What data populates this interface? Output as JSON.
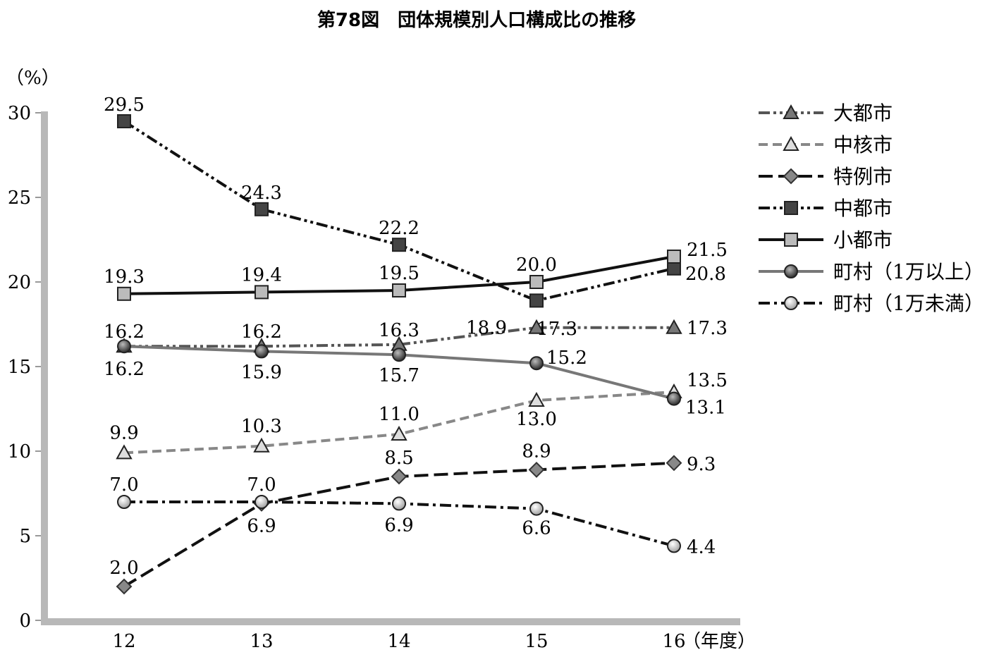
{
  "chart_data": {
    "type": "line",
    "title": "第78図　団体規模別人口構成比の推移",
    "ylabel": "（%）",
    "xlabel": "（年度）",
    "categories": [
      "12",
      "13",
      "14",
      "15",
      "16"
    ],
    "ylim": [
      0,
      30
    ],
    "yticks": [
      "0",
      "5",
      "10",
      "15",
      "20",
      "25",
      "30"
    ],
    "legend_position": "right",
    "series": [
      {
        "name": "大都市",
        "marker": "triangle",
        "dash": "dashdotdot",
        "color": "#555555",
        "marker_color": "#777777",
        "values": [
          16.2,
          16.2,
          16.3,
          17.3,
          17.3
        ],
        "labels": [
          "16.2",
          "16.2",
          "16.3",
          "17.3",
          "17.3"
        ]
      },
      {
        "name": "中核市",
        "marker": "triangle",
        "dash": "dashed",
        "color": "#888888",
        "marker_color": "#dddddd",
        "values": [
          9.9,
          10.3,
          11.0,
          13.0,
          13.5
        ],
        "labels": [
          "9.9",
          "10.3",
          "11.0",
          "13.0",
          "13.5"
        ]
      },
      {
        "name": "特例市",
        "marker": "diamond",
        "dash": "longdash",
        "color": "#111111",
        "marker_color": "#888888",
        "values": [
          2.0,
          6.9,
          8.5,
          8.9,
          9.3
        ],
        "labels": [
          "2.0",
          "6.9",
          "8.5",
          "8.9",
          "9.3"
        ]
      },
      {
        "name": "中都市",
        "marker": "square",
        "dash": "dashdotdot",
        "color": "#111111",
        "marker_color": "#444444",
        "values": [
          29.5,
          24.3,
          22.2,
          18.9,
          20.8
        ],
        "labels": [
          "29.5",
          "24.3",
          "22.2",
          "18.9",
          "20.8"
        ]
      },
      {
        "name": "小都市",
        "marker": "square",
        "dash": "solid",
        "color": "#111111",
        "marker_color": "#bbbbbb",
        "values": [
          19.3,
          19.4,
          19.5,
          20.0,
          21.5
        ],
        "labels": [
          "19.3",
          "19.4",
          "19.5",
          "20.0",
          "21.5"
        ]
      },
      {
        "name": "町村（1万以上）",
        "marker": "circle",
        "dash": "solid",
        "color": "#777777",
        "marker_color": "#333333",
        "values": [
          16.2,
          15.9,
          15.7,
          15.2,
          13.1
        ],
        "labels": [
          "16.2",
          "15.9",
          "15.7",
          "15.2",
          "13.1"
        ]
      },
      {
        "name": "町村（1万未満）",
        "marker": "circle",
        "dash": "dashdot",
        "color": "#111111",
        "marker_color": "#bbbbbb",
        "values": [
          7.0,
          7.0,
          6.9,
          6.6,
          4.4
        ],
        "labels": [
          "7.0",
          "7.0",
          "6.9",
          "6.6",
          "4.4"
        ]
      }
    ]
  }
}
